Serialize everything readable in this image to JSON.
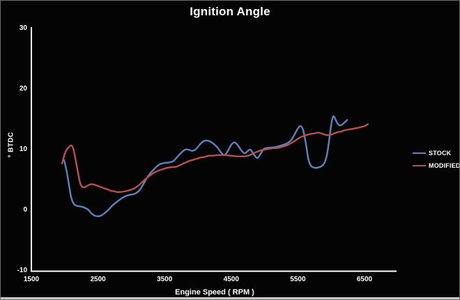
{
  "window": {
    "title": "Ignition Angle"
  },
  "chart_data": {
    "type": "line",
    "title": "Ignition Angle",
    "xlabel": "Engine Speed ( RPM )",
    "ylabel": "° BTDC",
    "x_ticks": [
      1500,
      2500,
      3500,
      4500,
      5500,
      6500
    ],
    "y_ticks": [
      30,
      20,
      10,
      0,
      -10
    ],
    "xlim": [
      1500,
      7000
    ],
    "ylim": [
      -10,
      30
    ],
    "grid": false,
    "legend_position": "right",
    "background_color": "#000000",
    "axis_color": "#ffffff",
    "text_color": "#ffffff",
    "series": [
      {
        "name": "STOCK",
        "color": "#5b83bd",
        "points": [
          [
            1990,
            8.3
          ],
          [
            2010,
            7.4
          ],
          [
            2040,
            5.8
          ],
          [
            2070,
            3.8
          ],
          [
            2100,
            2.0
          ],
          [
            2140,
            1.0
          ],
          [
            2190,
            0.7
          ],
          [
            2250,
            0.6
          ],
          [
            2300,
            0.4
          ],
          [
            2350,
            0.1
          ],
          [
            2400,
            -0.5
          ],
          [
            2450,
            -0.9
          ],
          [
            2510,
            -1.0
          ],
          [
            2560,
            -0.8
          ],
          [
            2610,
            -0.4
          ],
          [
            2660,
            0.1
          ],
          [
            2710,
            0.7
          ],
          [
            2760,
            1.2
          ],
          [
            2810,
            1.6
          ],
          [
            2860,
            2.0
          ],
          [
            2910,
            2.3
          ],
          [
            2960,
            2.5
          ],
          [
            3010,
            2.6
          ],
          [
            3070,
            2.8
          ],
          [
            3130,
            3.4
          ],
          [
            3190,
            4.5
          ],
          [
            3250,
            5.6
          ],
          [
            3310,
            6.4
          ],
          [
            3370,
            7.1
          ],
          [
            3430,
            7.6
          ],
          [
            3500,
            7.8
          ],
          [
            3570,
            7.9
          ],
          [
            3630,
            8.1
          ],
          [
            3690,
            8.8
          ],
          [
            3750,
            9.5
          ],
          [
            3810,
            10.0
          ],
          [
            3860,
            10.0
          ],
          [
            3910,
            9.8
          ],
          [
            3960,
            10.0
          ],
          [
            4010,
            10.6
          ],
          [
            4060,
            11.2
          ],
          [
            4110,
            11.5
          ],
          [
            4170,
            11.4
          ],
          [
            4230,
            11.0
          ],
          [
            4290,
            10.4
          ],
          [
            4350,
            9.5
          ],
          [
            4400,
            9.1
          ],
          [
            4450,
            9.8
          ],
          [
            4500,
            10.8
          ],
          [
            4550,
            11.2
          ],
          [
            4600,
            10.7
          ],
          [
            4650,
            9.9
          ],
          [
            4700,
            9.4
          ],
          [
            4750,
            9.8
          ],
          [
            4790,
            10.0
          ],
          [
            4840,
            9.2
          ],
          [
            4890,
            8.6
          ],
          [
            4940,
            9.3
          ],
          [
            4990,
            10.1
          ],
          [
            5050,
            10.3
          ],
          [
            5150,
            10.4
          ],
          [
            5250,
            10.7
          ],
          [
            5330,
            11.0
          ],
          [
            5400,
            11.6
          ],
          [
            5450,
            12.5
          ],
          [
            5500,
            13.5
          ],
          [
            5540,
            13.9
          ],
          [
            5580,
            13.2
          ],
          [
            5620,
            11.0
          ],
          [
            5660,
            8.3
          ],
          [
            5700,
            7.3
          ],
          [
            5760,
            7.0
          ],
          [
            5820,
            7.1
          ],
          [
            5870,
            7.4
          ],
          [
            5910,
            8.1
          ],
          [
            5940,
            9.4
          ],
          [
            5970,
            11.6
          ],
          [
            6000,
            14.1
          ],
          [
            6030,
            15.5
          ],
          [
            6060,
            15.1
          ],
          [
            6090,
            14.4
          ],
          [
            6130,
            14.0
          ],
          [
            6170,
            14.2
          ],
          [
            6210,
            14.6
          ],
          [
            6240,
            14.9
          ]
        ]
      },
      {
        "name": "MODIFIED",
        "color": "#b9504c",
        "points": [
          [
            1960,
            7.7
          ],
          [
            1990,
            8.9
          ],
          [
            2020,
            9.8
          ],
          [
            2060,
            10.4
          ],
          [
            2100,
            10.7
          ],
          [
            2130,
            10.1
          ],
          [
            2160,
            8.6
          ],
          [
            2200,
            6.2
          ],
          [
            2230,
            4.6
          ],
          [
            2260,
            3.9
          ],
          [
            2300,
            3.8
          ],
          [
            2350,
            4.1
          ],
          [
            2400,
            4.3
          ],
          [
            2450,
            4.2
          ],
          [
            2500,
            4.0
          ],
          [
            2550,
            3.8
          ],
          [
            2600,
            3.6
          ],
          [
            2650,
            3.4
          ],
          [
            2700,
            3.2
          ],
          [
            2750,
            3.1
          ],
          [
            2800,
            3.0
          ],
          [
            2900,
            3.1
          ],
          [
            3000,
            3.4
          ],
          [
            3060,
            3.7
          ],
          [
            3120,
            4.2
          ],
          [
            3180,
            4.8
          ],
          [
            3240,
            5.4
          ],
          [
            3300,
            5.9
          ],
          [
            3360,
            6.3
          ],
          [
            3420,
            6.6
          ],
          [
            3480,
            6.8
          ],
          [
            3540,
            7.0
          ],
          [
            3600,
            7.1
          ],
          [
            3680,
            7.2
          ],
          [
            3740,
            7.5
          ],
          [
            3800,
            7.8
          ],
          [
            3860,
            8.1
          ],
          [
            3920,
            8.3
          ],
          [
            3980,
            8.5
          ],
          [
            4040,
            8.7
          ],
          [
            4100,
            8.8
          ],
          [
            4160,
            9.0
          ],
          [
            4220,
            9.0
          ],
          [
            4300,
            9.1
          ],
          [
            4400,
            9.1
          ],
          [
            4500,
            9.0
          ],
          [
            4600,
            8.9
          ],
          [
            4700,
            8.9
          ],
          [
            4750,
            9.0
          ],
          [
            4800,
            9.2
          ],
          [
            4850,
            9.5
          ],
          [
            4900,
            9.7
          ],
          [
            4950,
            9.9
          ],
          [
            5000,
            10.0
          ],
          [
            5100,
            10.2
          ],
          [
            5200,
            10.3
          ],
          [
            5300,
            10.6
          ],
          [
            5350,
            10.8
          ],
          [
            5400,
            11.1
          ],
          [
            5450,
            11.4
          ],
          [
            5500,
            11.8
          ],
          [
            5550,
            12.1
          ],
          [
            5600,
            12.3
          ],
          [
            5650,
            12.5
          ],
          [
            5700,
            12.6
          ],
          [
            5750,
            12.7
          ],
          [
            5800,
            12.8
          ],
          [
            5850,
            12.7
          ],
          [
            5900,
            12.5
          ],
          [
            5950,
            12.4
          ],
          [
            6000,
            12.5
          ],
          [
            6050,
            12.7
          ],
          [
            6100,
            12.9
          ],
          [
            6150,
            13.0
          ],
          [
            6200,
            13.2
          ],
          [
            6300,
            13.4
          ],
          [
            6400,
            13.6
          ],
          [
            6500,
            13.9
          ],
          [
            6550,
            14.2
          ]
        ]
      }
    ]
  }
}
